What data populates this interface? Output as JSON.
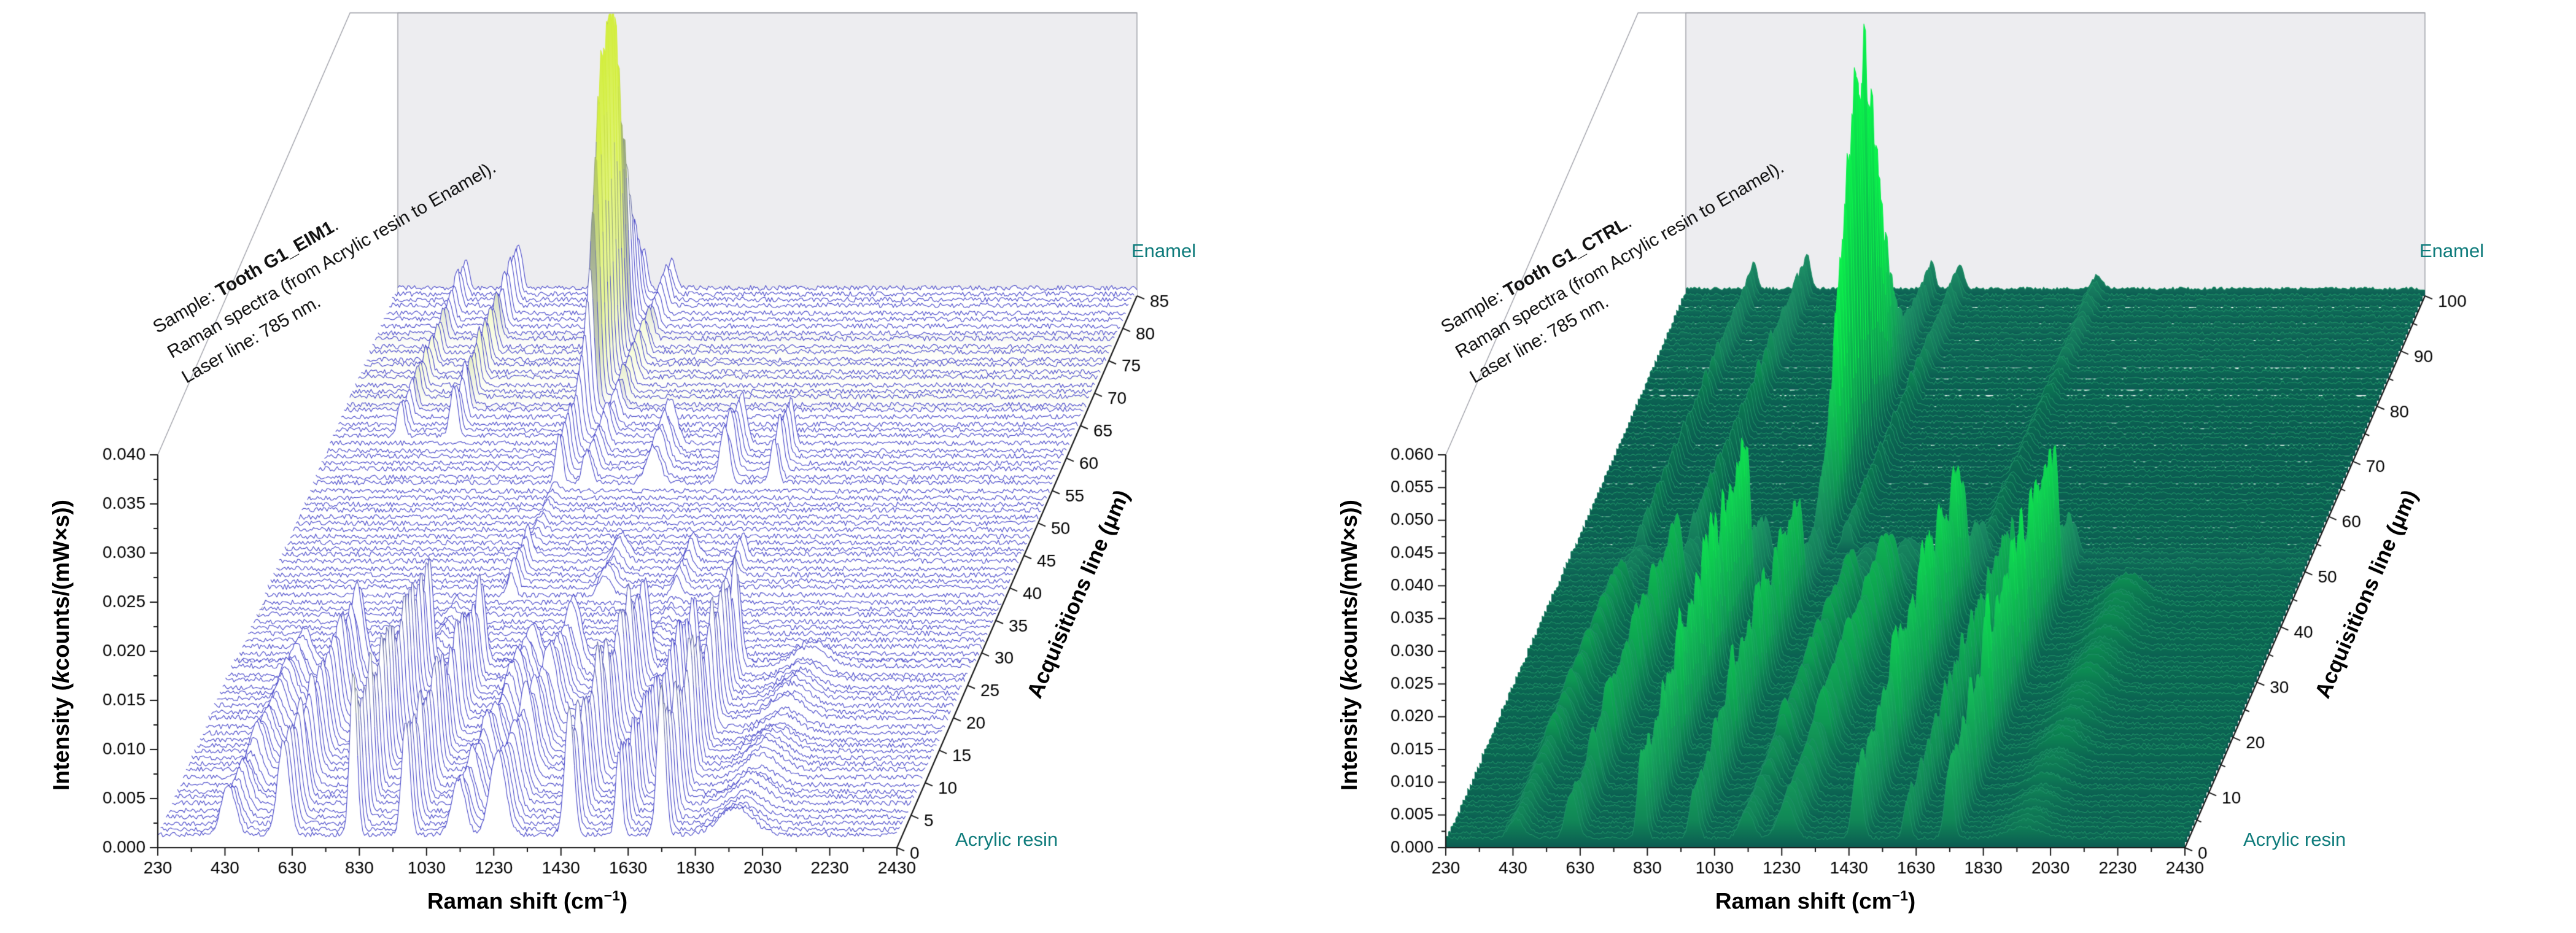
{
  "chart_data": [
    {
      "id": "EIM1",
      "type": "line",
      "plot_style": "3d-waterfall",
      "annotation": {
        "prefix": "Sample: ",
        "sample": "Tooth G1_EIM1",
        "suffix": ".",
        "line2": "Raman spectra (from Acrylic resin to Enamel).",
        "line3": "Laser line: 785 nm."
      },
      "xlabel": {
        "pre": "Raman shift (cm",
        "sup": "−1",
        "post": ")"
      },
      "ylabel": {
        "pre": "Intensity (",
        "italic": "k",
        "post": "counts/(mW×s))"
      },
      "zlabel": "Acquisitions line (μm)",
      "front_label": "Acrylic resin",
      "back_label": "Enamel",
      "x_range": [
        230,
        2430
      ],
      "y_range": [
        0,
        0.04
      ],
      "z_range": [
        0,
        85
      ],
      "x_tick_labels": [
        "230",
        "430",
        "630",
        "830",
        "1030",
        "1230",
        "1430",
        "1630",
        "1830",
        "2030",
        "2230",
        "2430"
      ],
      "y_tick_labels": [
        "0.000",
        "0.005",
        "0.010",
        "0.015",
        "0.020",
        "0.025",
        "0.030",
        "0.035",
        "0.040"
      ],
      "z_tick_labels": [
        "0",
        "5",
        "10",
        "15",
        "20",
        "25",
        "30",
        "35",
        "40",
        "45",
        "50",
        "55",
        "60",
        "65",
        "70",
        "75",
        "80",
        "85"
      ],
      "z_minor_step": 0,
      "seed": 7,
      "colors": {
        "line_low": "#4d4dcb",
        "line_high": "#d3ee3e",
        "fill": "#ffffff",
        "fill_mode": "white",
        "wall": "#ededf0",
        "wall_border": "#9fa0a8",
        "axis": "#1a1a1a",
        "tick_text": "#000000",
        "accent_text": "#0e7b7b",
        "t0": 0.009,
        "t1": 0.03
      },
      "zones": [
        {
          "z": [
            0,
            27
          ],
          "base": 0.0012,
          "scale": [
            1.05,
            0.8
          ],
          "peaks": [
            [
              440,
              30,
              0.004
            ],
            [
              604,
              24,
              0.009
            ],
            [
              812,
              15,
              0.013
            ],
            [
              968,
              17,
              0.01
            ],
            [
              1125,
              28,
              0.005
            ],
            [
              1242,
              32,
              0.0075
            ],
            [
              1455,
              19,
              0.011
            ],
            [
              1602,
              13,
              0.008
            ],
            [
              1728,
              17,
              0.012
            ],
            [
              1950,
              70,
              0.0022
            ]
          ]
        },
        {
          "z": [
            28,
            37
          ],
          "base": 0.0006,
          "peaks": [
            [
              812,
              15,
              0.0007
            ],
            [
              1455,
              19,
              0.0006
            ]
          ]
        },
        {
          "z": [
            38,
            44
          ],
          "base": 0.0007,
          "peaks": [
            [
              962,
              15,
              0.0026
            ],
            [
              1242,
              26,
              0.002
            ],
            [
              1455,
              18,
              0.002
            ],
            [
              1602,
              14,
              0.0018
            ]
          ]
        },
        {
          "z": [
            45,
            54
          ],
          "base": 0.0006,
          "peaks": [
            [
              962,
              15,
              0.0008
            ]
          ]
        },
        {
          "z": [
            55,
            61
          ],
          "base": 0.0008,
          "peaks": [
            [
              962,
              15,
              0.005
            ],
            [
              1045,
              18,
              0.003
            ],
            [
              1242,
              28,
              0.004
            ],
            [
              1455,
              20,
              0.005
            ],
            [
              1602,
              15,
              0.0045
            ]
          ]
        },
        {
          "z": [
            62,
            85
          ],
          "base": 0.0009,
          "peaks": [
            [
              432,
              13,
              0.003
            ],
            [
              590,
              15,
              0.0045
            ],
            [
              962,
              13,
              0.0035
            ],
            [
              1045,
              17,
              0.003
            ]
          ],
          "big": [
            72.5,
            6.5,
            962,
            17,
            0.0345
          ]
        }
      ]
    },
    {
      "id": "CTRL",
      "type": "line",
      "plot_style": "3d-waterfall",
      "annotation": {
        "prefix": "Sample: ",
        "sample": "Tooth G1_CTRL",
        "suffix": ".",
        "line2": "Raman spectra (from Acrylic resin to Enamel).",
        "line3": "Laser line: 785 nm."
      },
      "xlabel": {
        "pre": "Raman shift (cm",
        "sup": "−1",
        "post": ")"
      },
      "ylabel": {
        "pre": "Intensity (",
        "italic": "k",
        "post": "counts/(mW×s))"
      },
      "zlabel": "Acquisitions line (μm)",
      "front_label": "Acrylic resin",
      "back_label": "Enamel",
      "x_range": [
        230,
        2430
      ],
      "y_range": [
        0,
        0.06
      ],
      "z_range": [
        0,
        100
      ],
      "x_tick_labels": [
        "230",
        "430",
        "630",
        "830",
        "1030",
        "1230",
        "1430",
        "1630",
        "1830",
        "2030",
        "2230",
        "2430"
      ],
      "y_tick_labels": [
        "0.000",
        "0.005",
        "0.010",
        "0.015",
        "0.020",
        "0.025",
        "0.030",
        "0.035",
        "0.040",
        "0.045",
        "0.050",
        "0.055",
        "0.060"
      ],
      "z_tick_labels": [
        "0",
        "10",
        "20",
        "30",
        "40",
        "50",
        "60",
        "70",
        "80",
        "90",
        "100"
      ],
      "z_minor_step": 5,
      "seed": 13,
      "colors": {
        "line_low": "#1e8f66",
        "line_high": "#0cf24c",
        "fill": "#0b5a52",
        "fill_mode": "dark",
        "wall": "#ededf0",
        "wall_border": "#9fa0a8",
        "axis": "#1a1a1a",
        "tick_text": "#000000",
        "accent_text": "#0e7b7b",
        "t0": 0.006,
        "t1": 0.03
      },
      "zones": [
        {
          "z": [
            0,
            14
          ],
          "base": 0.0013,
          "scale": [
            0.55,
            0.85
          ],
          "peaks": [
            [
              440,
              30,
              0.005
            ],
            [
              604,
              24,
              0.01
            ],
            [
              812,
              15,
              0.02
            ],
            [
              968,
              17,
              0.013
            ],
            [
              1125,
              28,
              0.006
            ],
            [
              1242,
              32,
              0.009
            ],
            [
              1455,
              19,
              0.017
            ],
            [
              1602,
              13,
              0.01
            ],
            [
              1728,
              17,
              0.019
            ],
            [
              1950,
              70,
              0.003
            ]
          ]
        },
        {
          "z": [
            15,
            44
          ],
          "base": 0.0015,
          "scale": [
            1.0,
            1.2
          ],
          "peaks": [
            [
              440,
              30,
              0.005
            ],
            [
              604,
              24,
              0.01
            ],
            [
              812,
              15,
              0.02
            ],
            [
              968,
              17,
              0.013
            ],
            [
              1125,
              28,
              0.006
            ],
            [
              1242,
              32,
              0.009
            ],
            [
              1455,
              19,
              0.017
            ],
            [
              1602,
              13,
              0.01
            ],
            [
              1728,
              17,
              0.019
            ],
            [
              1950,
              70,
              0.003
            ]
          ]
        },
        {
          "z": [
            45,
            52
          ],
          "base": 0.0012,
          "scale": [
            0.55,
            0.25
          ],
          "peaks": [
            [
              440,
              30,
              0.005
            ],
            [
              604,
              24,
              0.01
            ],
            [
              812,
              15,
              0.02
            ],
            [
              968,
              17,
              0.013
            ],
            [
              1125,
              28,
              0.006
            ],
            [
              1242,
              32,
              0.009
            ],
            [
              1455,
              19,
              0.017
            ],
            [
              1602,
              13,
              0.01
            ],
            [
              1728,
              17,
              0.019
            ]
          ]
        },
        {
          "z": [
            53,
            100
          ],
          "base": 0.001,
          "peaks": [
            [
              432,
              13,
              0.0035
            ],
            [
              590,
              15,
              0.005
            ],
            [
              962,
              13,
              0.004
            ],
            [
              1045,
              17,
              0.0035
            ],
            [
              1455,
              20,
              0.002
            ]
          ],
          "big": [
            70,
            10.5,
            962,
            17,
            0.058
          ]
        }
      ]
    }
  ]
}
